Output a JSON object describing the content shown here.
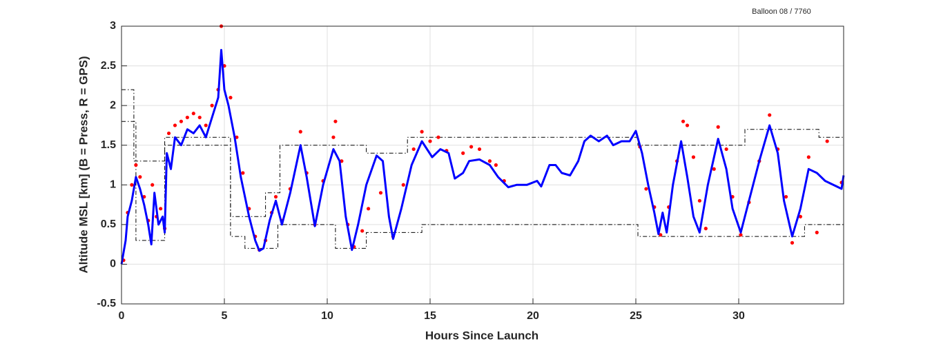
{
  "chart_data": {
    "type": "line",
    "title": "Balloon 08 / 7760",
    "xlabel": "Hours Since Launch",
    "ylabel": "Altitude MSL [km]   (B = Press, R = GPS)",
    "xlim": [
      0,
      35.1
    ],
    "ylim": [
      -0.5,
      3
    ],
    "xticks": [
      0,
      5,
      10,
      15,
      20,
      25,
      30
    ],
    "yticks": [
      -0.5,
      0,
      0.5,
      1,
      1.5,
      2,
      2.5,
      3
    ],
    "grid": true,
    "series": [
      {
        "style": "dashdot",
        "color": "#000000",
        "x": [
          0,
          0.6,
          0.6,
          2.1,
          2.1,
          5.3,
          5.3,
          7.0,
          7.0,
          7.7,
          7.7,
          11.9,
          11.9,
          13.9,
          13.9,
          25.1,
          25.1,
          30.3,
          30.3,
          33.9,
          33.9,
          35.1
        ],
        "values": [
          2.2,
          2.2,
          1.3,
          1.3,
          1.6,
          1.6,
          0.6,
          0.6,
          0.9,
          0.9,
          1.5,
          1.5,
          1.4,
          1.4,
          1.6,
          1.6,
          1.5,
          1.5,
          1.7,
          1.7,
          1.6,
          1.6
        ]
      },
      {
        "style": "dashdot",
        "color": "#000000",
        "x": [
          0,
          0.7,
          0.7,
          2.1,
          2.1,
          5.3,
          5.3,
          6.0,
          6.0,
          7.6,
          7.6,
          10.4,
          10.4,
          11.9,
          11.9,
          14.6,
          14.6,
          25.1,
          25.1,
          33.2,
          33.2,
          35.1
        ],
        "values": [
          1.8,
          1.8,
          0.3,
          0.3,
          1.5,
          1.5,
          0.35,
          0.35,
          0.2,
          0.2,
          0.5,
          0.5,
          0.2,
          0.2,
          0.4,
          0.4,
          0.5,
          0.5,
          0.35,
          0.35,
          0.5,
          0.5
        ]
      },
      {
        "style": "dots",
        "color": "#ff0000",
        "x": [
          0.1,
          0.3,
          0.5,
          0.7,
          0.9,
          1.1,
          1.3,
          1.5,
          1.7,
          1.9,
          2.1,
          2.3,
          2.6,
          2.9,
          3.2,
          3.5,
          3.8,
          4.1,
          4.4,
          4.7,
          4.85,
          5.0,
          5.3,
          5.6,
          5.9,
          6.2,
          6.5,
          6.7,
          7.0,
          7.3,
          7.5,
          7.8,
          8.2,
          8.7,
          9.0,
          9.4,
          9.8,
          10.3,
          10.4,
          10.7,
          11.0,
          11.3,
          11.7,
          12.0,
          12.6,
          13.2,
          13.7,
          14.2,
          14.6,
          15.0,
          15.4,
          15.8,
          16.6,
          17.0,
          17.4,
          17.9,
          18.2,
          18.6,
          25.2,
          25.5,
          25.9,
          26.2,
          26.6,
          27.0,
          27.3,
          27.5,
          27.8,
          28.1,
          28.4,
          28.8,
          29.0,
          29.4,
          29.7,
          30.1,
          30.5,
          31.0,
          31.5,
          31.9,
          32.3,
          32.6,
          33.0,
          33.4,
          33.8,
          34.3,
          35.0
        ],
        "values": [
          0.05,
          0.65,
          1.0,
          1.25,
          1.1,
          0.85,
          0.55,
          1.0,
          0.6,
          0.7,
          0.45,
          1.65,
          1.75,
          1.8,
          1.85,
          1.9,
          1.85,
          1.75,
          2.0,
          2.2,
          3.0,
          2.5,
          2.1,
          1.6,
          1.15,
          0.7,
          0.35,
          0.18,
          0.3,
          0.65,
          0.85,
          0.55,
          0.95,
          1.67,
          1.15,
          0.5,
          1.05,
          1.6,
          1.8,
          1.3,
          0.5,
          0.22,
          0.42,
          0.7,
          0.9,
          0.35,
          1.0,
          1.45,
          1.67,
          1.55,
          1.6,
          1.43,
          1.4,
          1.48,
          1.45,
          1.3,
          1.25,
          1.05,
          1.48,
          0.95,
          0.72,
          0.37,
          0.72,
          1.3,
          1.8,
          1.75,
          1.35,
          0.8,
          0.45,
          1.2,
          1.73,
          1.45,
          0.85,
          0.37,
          0.78,
          1.3,
          1.88,
          1.45,
          0.85,
          0.27,
          0.6,
          1.35,
          0.4,
          1.55,
          1.03
        ]
      },
      {
        "style": "line",
        "color": "#0000ff",
        "x": [
          0,
          0.2,
          0.3,
          0.5,
          0.7,
          0.9,
          1.1,
          1.3,
          1.45,
          1.6,
          1.8,
          2.0,
          2.1,
          2.2,
          2.4,
          2.6,
          2.9,
          3.2,
          3.5,
          3.8,
          4.1,
          4.4,
          4.7,
          4.85,
          5.0,
          5.2,
          5.5,
          5.8,
          6.2,
          6.5,
          6.7,
          6.9,
          7.2,
          7.5,
          7.8,
          8.2,
          8.7,
          9.0,
          9.4,
          9.8,
          10.3,
          10.6,
          10.9,
          11.2,
          11.5,
          11.9,
          12.4,
          12.7,
          13.0,
          13.2,
          13.6,
          14.1,
          14.6,
          15.1,
          15.5,
          15.9,
          16.2,
          16.6,
          16.9,
          17.4,
          17.9,
          18.3,
          18.8,
          19.2,
          19.7,
          20.2,
          20.4,
          20.8,
          21.1,
          21.4,
          21.8,
          22.2,
          22.5,
          22.8,
          23.2,
          23.6,
          23.9,
          24.3,
          24.7,
          25.0,
          25.3,
          25.6,
          25.9,
          26.1,
          26.3,
          26.5,
          26.8,
          27.2,
          27.5,
          27.8,
          28.1,
          28.5,
          29.0,
          29.4,
          29.7,
          30.1,
          30.5,
          31.0,
          31.5,
          31.9,
          32.2,
          32.6,
          33.0,
          33.4,
          33.8,
          34.2,
          35.0,
          35.1
        ],
        "values": [
          0,
          0.3,
          0.6,
          0.8,
          1.1,
          0.95,
          0.75,
          0.5,
          0.25,
          0.9,
          0.5,
          0.6,
          0.4,
          1.4,
          1.2,
          1.6,
          1.5,
          1.7,
          1.65,
          1.75,
          1.6,
          1.85,
          2.1,
          2.7,
          2.2,
          2.0,
          1.6,
          1.1,
          0.6,
          0.3,
          0.17,
          0.2,
          0.55,
          0.8,
          0.5,
          0.9,
          1.5,
          1.1,
          0.48,
          1.0,
          1.45,
          1.3,
          0.6,
          0.18,
          0.5,
          1.0,
          1.37,
          1.3,
          0.6,
          0.32,
          0.7,
          1.25,
          1.55,
          1.35,
          1.45,
          1.4,
          1.08,
          1.15,
          1.3,
          1.32,
          1.25,
          1.1,
          0.97,
          1.0,
          1.0,
          1.05,
          0.98,
          1.25,
          1.25,
          1.15,
          1.12,
          1.3,
          1.55,
          1.62,
          1.55,
          1.62,
          1.5,
          1.55,
          1.55,
          1.68,
          1.4,
          1.0,
          0.65,
          0.38,
          0.65,
          0.4,
          1.0,
          1.55,
          1.1,
          0.6,
          0.4,
          1.0,
          1.58,
          1.2,
          0.7,
          0.4,
          0.8,
          1.3,
          1.75,
          1.4,
          0.8,
          0.35,
          0.7,
          1.2,
          1.15,
          1.05,
          0.95,
          1.12
        ]
      }
    ]
  }
}
